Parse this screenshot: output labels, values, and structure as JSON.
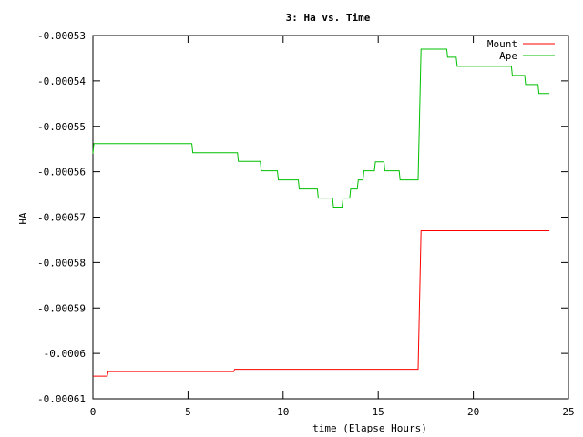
{
  "chart_data": {
    "type": "line",
    "title": "3: Ha vs. Time",
    "xlabel": "time (Elapse Hours)",
    "ylabel": "HA",
    "xlim": [
      0,
      25
    ],
    "ylim": [
      -0.00061,
      -0.00053
    ],
    "xticks": [
      0,
      5,
      10,
      15,
      20,
      25
    ],
    "xtick_labels": [
      "0",
      "5",
      "10",
      "15",
      "20",
      "25"
    ],
    "yticks": [
      -0.00053,
      -0.00054,
      -0.00055,
      -0.00056,
      -0.00057,
      -0.00058,
      -0.00059,
      -0.0006,
      -0.00061
    ],
    "ytick_labels": [
      "-0.00053",
      "-0.00054",
      "-0.00055",
      "-0.00056",
      "-0.00057",
      "-0.00058",
      "-0.00059",
      "-0.0006",
      "-0.00061"
    ],
    "grid": false,
    "legend_position": "top-right",
    "series": [
      {
        "name": "Mount",
        "color": "#ff0000",
        "points": [
          [
            0.0,
            -0.000605
          ],
          [
            0.75,
            -0.000605
          ],
          [
            0.8,
            -0.000604
          ],
          [
            7.4,
            -0.000604
          ],
          [
            7.45,
            -0.0006035
          ],
          [
            17.1,
            -0.0006035
          ],
          [
            17.25,
            -0.000573
          ],
          [
            24.0,
            -0.000573
          ]
        ]
      },
      {
        "name": "Ape",
        "color": "#00c000",
        "points": [
          [
            0.0,
            -0.000556
          ],
          [
            0.05,
            -0.0005538
          ],
          [
            5.2,
            -0.0005538
          ],
          [
            5.25,
            -0.0005558
          ],
          [
            7.6,
            -0.0005558
          ],
          [
            7.65,
            -0.0005577
          ],
          [
            8.8,
            -0.0005577
          ],
          [
            8.85,
            -0.0005598
          ],
          [
            9.7,
            -0.0005598
          ],
          [
            9.75,
            -0.0005618
          ],
          [
            10.8,
            -0.0005618
          ],
          [
            10.85,
            -0.0005638
          ],
          [
            11.8,
            -0.0005638
          ],
          [
            11.85,
            -0.0005658
          ],
          [
            12.6,
            -0.0005658
          ],
          [
            12.65,
            -0.0005678
          ],
          [
            13.1,
            -0.0005678
          ],
          [
            13.15,
            -0.0005658
          ],
          [
            13.5,
            -0.0005658
          ],
          [
            13.55,
            -0.0005638
          ],
          [
            13.9,
            -0.0005638
          ],
          [
            13.95,
            -0.0005618
          ],
          [
            14.2,
            -0.0005618
          ],
          [
            14.25,
            -0.0005598
          ],
          [
            14.8,
            -0.0005598
          ],
          [
            14.85,
            -0.0005578
          ],
          [
            15.3,
            -0.0005578
          ],
          [
            15.35,
            -0.0005598
          ],
          [
            16.1,
            -0.0005598
          ],
          [
            16.15,
            -0.0005618
          ],
          [
            17.1,
            -0.0005618
          ],
          [
            17.25,
            -0.000533
          ],
          [
            18.6,
            -0.000533
          ],
          [
            18.65,
            -0.0005348
          ],
          [
            19.1,
            -0.0005348
          ],
          [
            19.15,
            -0.0005368
          ],
          [
            22.0,
            -0.0005368
          ],
          [
            22.05,
            -0.0005388
          ],
          [
            22.7,
            -0.0005388
          ],
          [
            22.75,
            -0.0005408
          ],
          [
            23.4,
            -0.0005408
          ],
          [
            23.45,
            -0.0005428
          ],
          [
            24.0,
            -0.0005428
          ]
        ]
      }
    ]
  }
}
